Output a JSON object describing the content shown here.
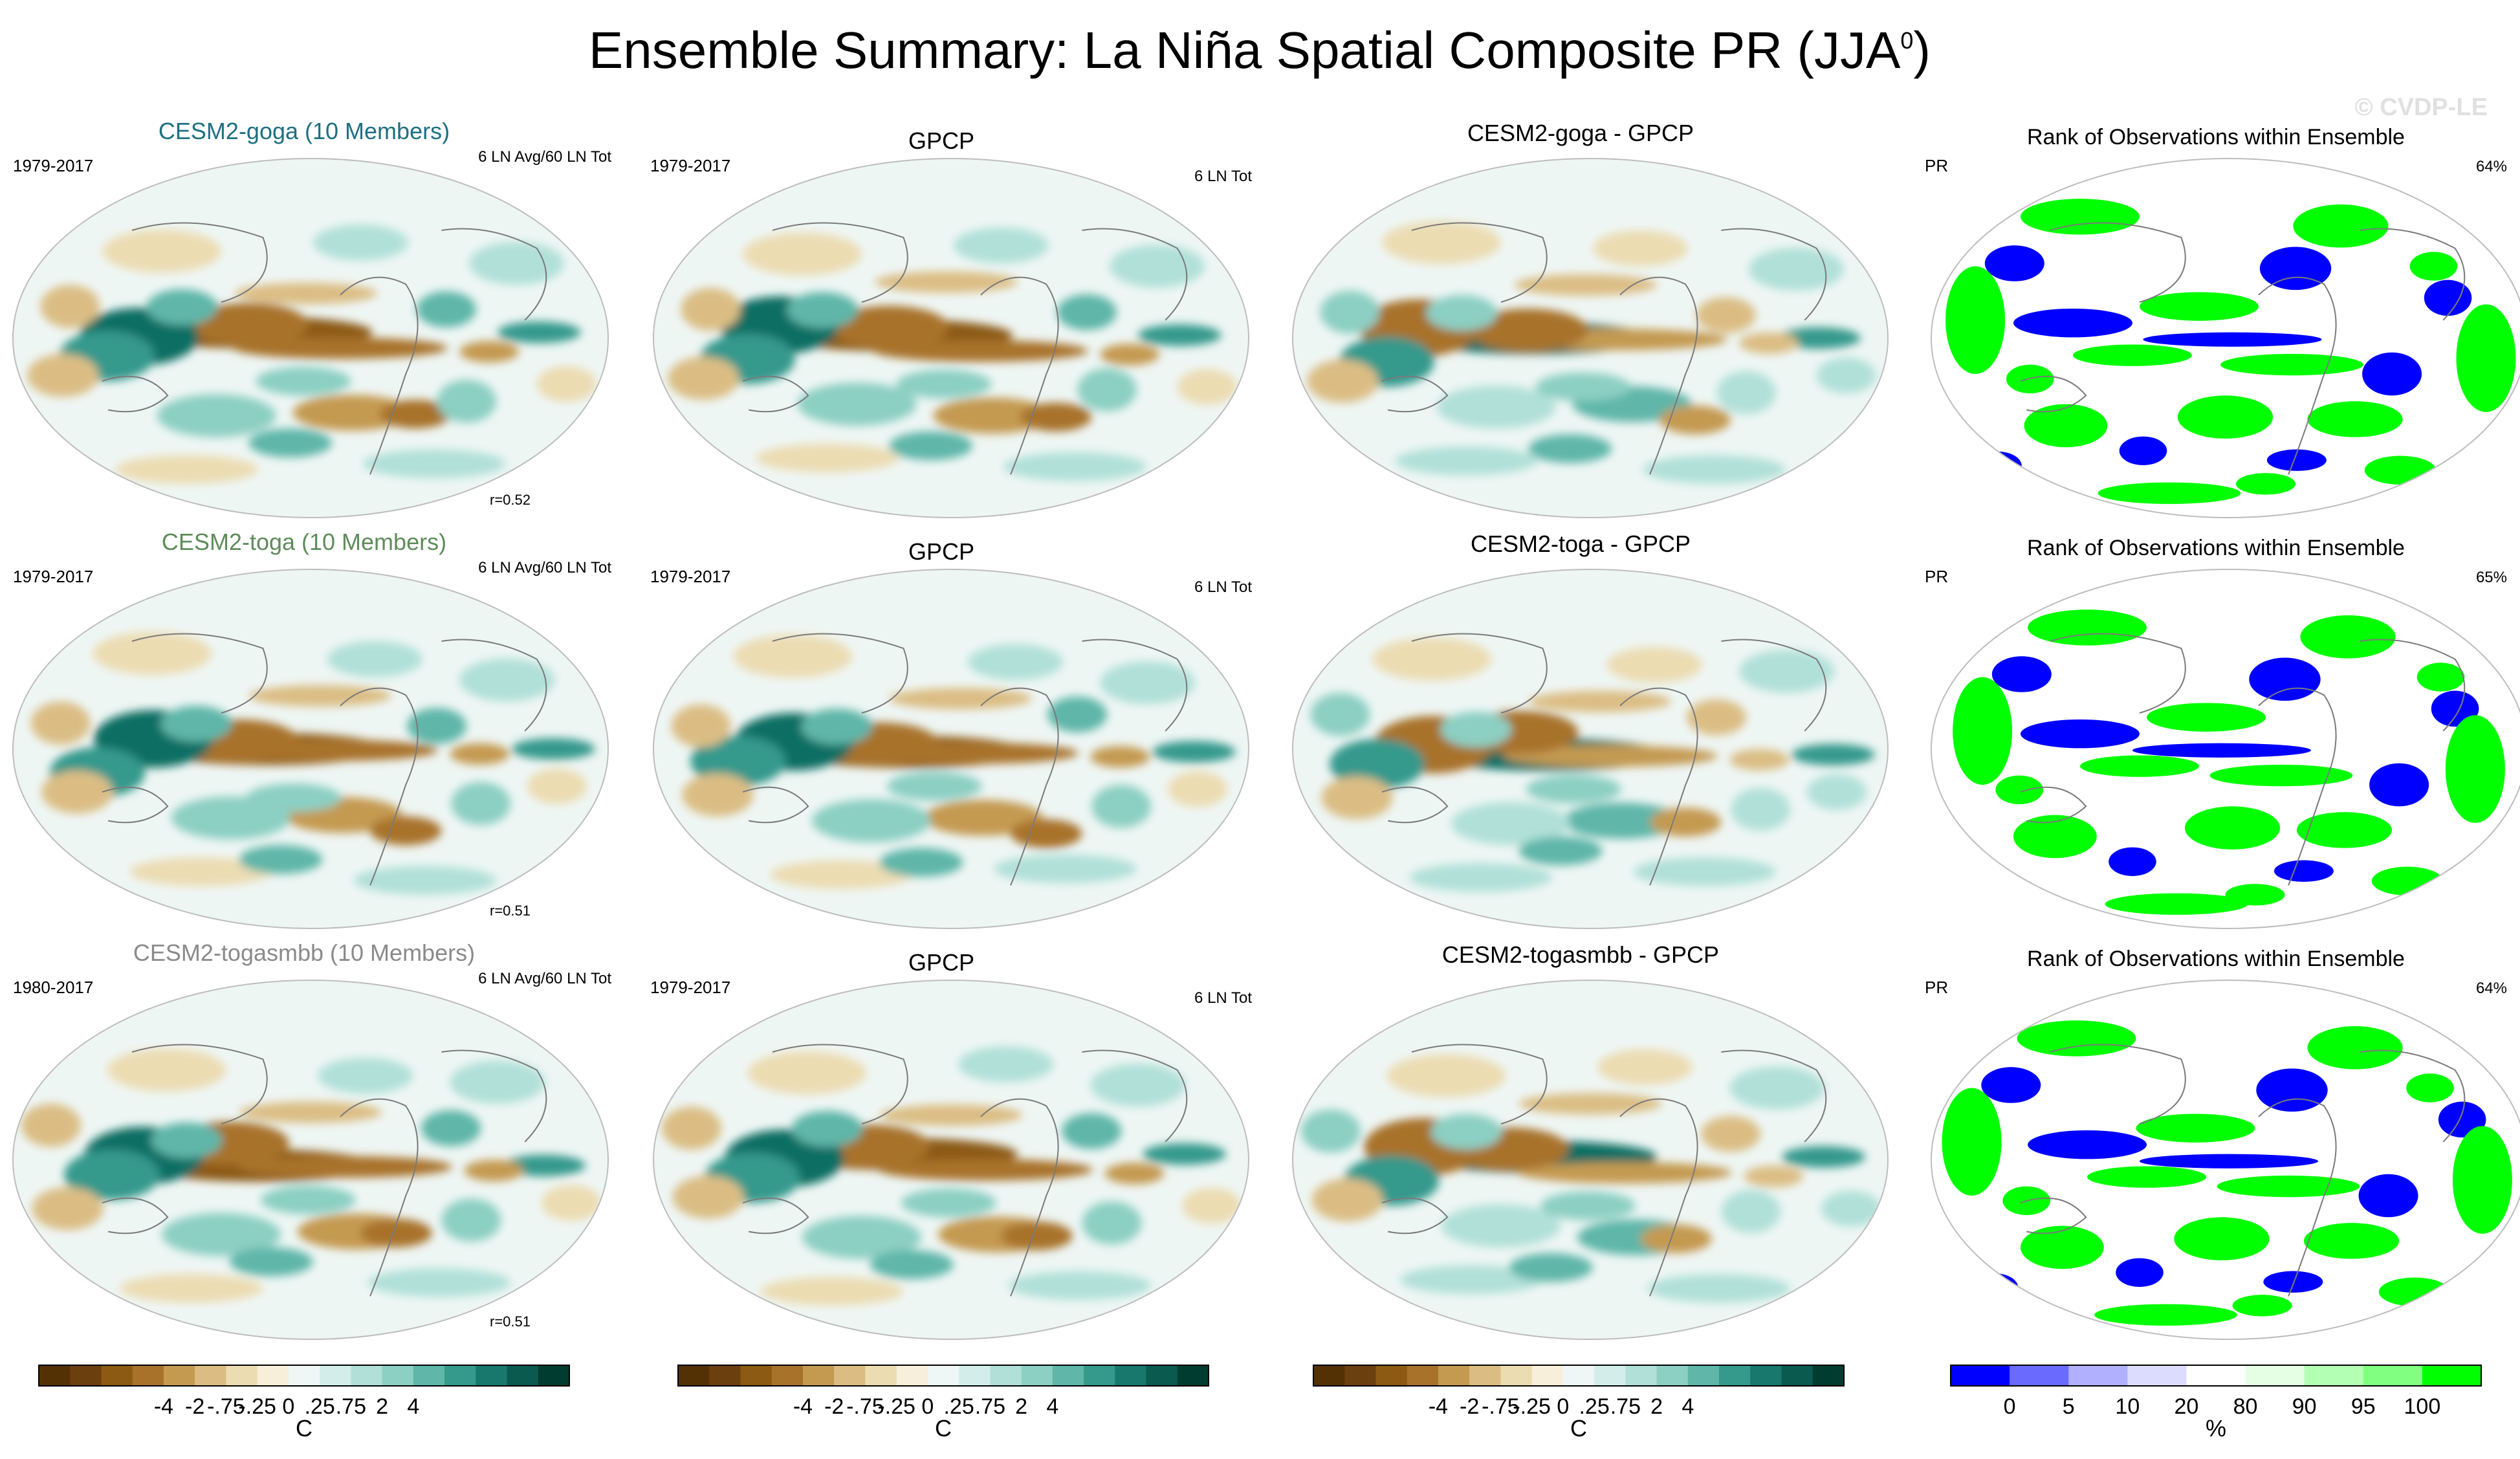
{
  "chart_data": {
    "type": "heatmap",
    "title": "Ensemble Summary: La Niña Spatial Composite PR (JJA",
    "title_superscript": "0",
    "title_close": ")",
    "watermark": "© CVDP-LE",
    "colors": {
      "model_goga": "#1f6f82",
      "model_toga": "#5e8c5a",
      "model_togasmbb": "#8a8a8a",
      "brown_dark": "#8c5a12",
      "teal_dark": "#0f6e64"
    },
    "rows": [
      {
        "model_title": "CESM2-goga (10 Members)",
        "model_period": "1979-2017",
        "model_count": "6 LN Avg/60 LN Tot",
        "model_r": "r=0.52",
        "obs_title": "GPCP",
        "obs_period": "1979-2017",
        "obs_count": "6 LN Tot",
        "diff_title": "CESM2-goga - GPCP",
        "rank_title": "Rank of Observations within Ensemble",
        "rank_var": "PR",
        "rank_pct": "64%"
      },
      {
        "model_title": "CESM2-toga (10 Members)",
        "model_period": "1979-2017",
        "model_count": "6 LN Avg/60 LN Tot",
        "model_r": "r=0.51",
        "obs_title": "GPCP",
        "obs_period": "1979-2017",
        "obs_count": "6 LN Tot",
        "diff_title": "CESM2-toga - GPCP",
        "rank_title": "Rank of Observations within Ensemble",
        "rank_var": "PR",
        "rank_pct": "65%"
      },
      {
        "model_title": "CESM2-togasmbb (10 Members)",
        "model_period": "1980-2017",
        "model_count": "6 LN Avg/60 LN Tot",
        "model_r": "r=0.51",
        "obs_title": "GPCP",
        "obs_period": "1979-2017",
        "obs_count": "6 LN Tot",
        "diff_title": "CESM2-togasmbb - GPCP",
        "rank_title": "Rank of Observations within Ensemble",
        "rank_var": "PR",
        "rank_pct": "64%"
      }
    ],
    "colorbar_div": {
      "colors": [
        "#543005",
        "#6b3f0e",
        "#8c5a12",
        "#a8722b",
        "#c49a51",
        "#dbbd84",
        "#ecdcb2",
        "#f7efd9",
        "#eef7f6",
        "#d3eeea",
        "#b1e0d8",
        "#8ccfc3",
        "#5fb6a9",
        "#35998c",
        "#18786d",
        "#0a5a50",
        "#003c30"
      ],
      "tick_labels": [
        "-4",
        "-2",
        "-.75",
        "-.25",
        "0",
        ".25",
        ".75",
        "2",
        "4"
      ],
      "unit": "C"
    },
    "colorbar_rank": {
      "colors": [
        "#0000ff",
        "#6a6aff",
        "#b0b0ff",
        "#dcdcff",
        "#ffffff",
        "#e5ffe5",
        "#b3ffb3",
        "#80ff80",
        "#00ff00"
      ],
      "tick_labels": [
        "0",
        "5",
        "10",
        "20",
        "80",
        "90",
        "95",
        "100"
      ],
      "unit": "%"
    }
  }
}
